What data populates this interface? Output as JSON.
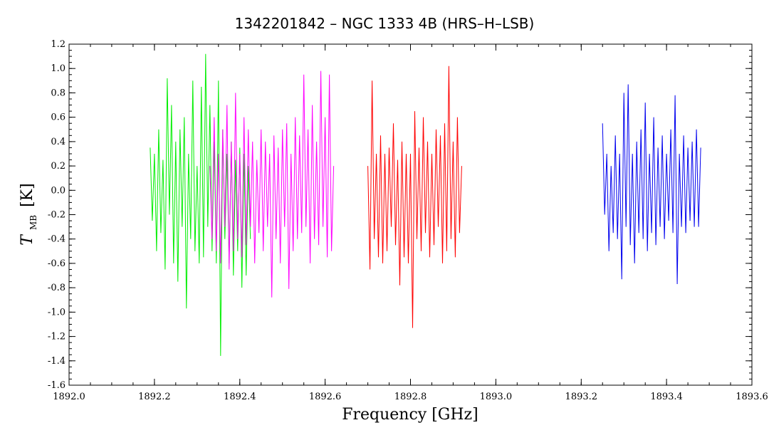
{
  "chart_data": {
    "type": "line",
    "title": "1342201842 – NGC 1333 4B (HRS–H–LSB)",
    "xlabel": "Frequency [GHz]",
    "ylabel_main": "T",
    "ylabel_sub": "MB",
    "ylabel_unit": "[K]",
    "xlim": [
      1892.0,
      1893.6
    ],
    "ylim": [
      -1.6,
      1.2
    ],
    "xticks": [
      1892.0,
      1892.2,
      1892.4,
      1892.6,
      1892.8,
      1893.0,
      1893.2,
      1893.4,
      1893.6
    ],
    "xtick_labels": [
      "1892.0",
      "1892.2",
      "1892.4",
      "1892.6",
      "1892.8",
      "1893.0",
      "1893.2",
      "1893.4",
      "1893.6"
    ],
    "yticks": [
      -1.6,
      -1.4,
      -1.2,
      -1.0,
      -0.8,
      -0.6,
      -0.4,
      -0.2,
      0.0,
      0.2,
      0.4,
      0.6,
      0.8,
      1.0,
      1.2
    ],
    "ytick_labels": [
      "-1.6",
      "-1.4",
      "-1.2",
      "-1.0",
      "-0.8",
      "-0.6",
      "-0.4",
      "-0.2",
      "0.0",
      "0.2",
      "0.4",
      "0.6",
      "0.8",
      "1.0",
      "1.2"
    ],
    "grid": false,
    "series": [
      {
        "color": "#00ee00",
        "x": [
          1892.19,
          1892.195,
          1892.2,
          1892.205,
          1892.21,
          1892.215,
          1892.22,
          1892.225,
          1892.23,
          1892.235,
          1892.24,
          1892.245,
          1892.25,
          1892.255,
          1892.26,
          1892.265,
          1892.27,
          1892.275,
          1892.28,
          1892.285,
          1892.29,
          1892.295,
          1892.3,
          1892.305,
          1892.31,
          1892.315,
          1892.32,
          1892.325,
          1892.33,
          1892.335,
          1892.34,
          1892.345,
          1892.35,
          1892.355,
          1892.36,
          1892.365,
          1892.37,
          1892.375,
          1892.38,
          1892.385,
          1892.39,
          1892.395,
          1892.4,
          1892.405,
          1892.41,
          1892.415,
          1892.42,
          1892.425
        ],
        "y": [
          0.35,
          -0.25,
          0.3,
          -0.5,
          0.5,
          -0.35,
          0.25,
          -0.65,
          0.92,
          -0.2,
          0.7,
          -0.6,
          0.4,
          -0.75,
          0.5,
          -0.3,
          0.6,
          -0.97,
          0.3,
          -0.4,
          0.9,
          -0.5,
          0.2,
          -0.6,
          0.85,
          -0.55,
          1.12,
          -0.3,
          0.7,
          -0.5,
          0.4,
          -0.6,
          0.9,
          -1.36,
          0.5,
          -0.4,
          0.3,
          -0.6,
          0.4,
          -0.7,
          0.25,
          -0.5,
          0.35,
          -0.8,
          0.3,
          -0.7,
          0.2,
          -0.4
        ]
      },
      {
        "color": "#ff00ff",
        "x": [
          1892.33,
          1892.335,
          1892.34,
          1892.345,
          1892.35,
          1892.355,
          1892.36,
          1892.365,
          1892.37,
          1892.375,
          1892.38,
          1892.385,
          1892.39,
          1892.395,
          1892.4,
          1892.405,
          1892.41,
          1892.415,
          1892.42,
          1892.425,
          1892.43,
          1892.435,
          1892.44,
          1892.445,
          1892.45,
          1892.455,
          1892.46,
          1892.465,
          1892.47,
          1892.475,
          1892.48,
          1892.485,
          1892.49,
          1892.495,
          1892.5,
          1892.505,
          1892.51,
          1892.515,
          1892.52,
          1892.525,
          1892.53,
          1892.535,
          1892.54,
          1892.545,
          1892.55,
          1892.555,
          1892.56,
          1892.565,
          1892.57,
          1892.575,
          1892.58,
          1892.585,
          1892.59,
          1892.595,
          1892.6,
          1892.605,
          1892.61,
          1892.615,
          1892.62
        ],
        "y": [
          0.2,
          -0.4,
          0.6,
          -0.5,
          0.3,
          -0.6,
          0.5,
          -0.3,
          0.7,
          -0.65,
          0.4,
          -0.5,
          0.8,
          -0.4,
          0.3,
          -0.55,
          0.6,
          -0.45,
          0.5,
          -0.3,
          0.4,
          -0.6,
          0.25,
          -0.35,
          0.5,
          -0.5,
          0.4,
          -0.3,
          0.3,
          -0.88,
          0.45,
          -0.4,
          0.35,
          -0.6,
          0.5,
          -0.3,
          0.55,
          -0.81,
          0.3,
          -0.5,
          0.6,
          -0.4,
          0.45,
          -0.35,
          0.95,
          -0.3,
          0.5,
          -0.6,
          0.7,
          -0.4,
          0.4,
          -0.45,
          0.98,
          -0.3,
          0.6,
          -0.55,
          0.95,
          -0.5,
          0.2
        ]
      },
      {
        "color": "#ff0000",
        "x": [
          1892.7,
          1892.705,
          1892.71,
          1892.715,
          1892.72,
          1892.725,
          1892.73,
          1892.735,
          1892.74,
          1892.745,
          1892.75,
          1892.755,
          1892.76,
          1892.765,
          1892.77,
          1892.775,
          1892.78,
          1892.785,
          1892.79,
          1892.795,
          1892.8,
          1892.805,
          1892.81,
          1892.815,
          1892.82,
          1892.825,
          1892.83,
          1892.835,
          1892.84,
          1892.845,
          1892.85,
          1892.855,
          1892.86,
          1892.865,
          1892.87,
          1892.875,
          1892.88,
          1892.885,
          1892.89,
          1892.895,
          1892.9,
          1892.905,
          1892.91,
          1892.915,
          1892.92
        ],
        "y": [
          0.2,
          -0.65,
          0.9,
          -0.4,
          0.3,
          -0.55,
          0.45,
          -0.6,
          0.3,
          -0.5,
          0.35,
          -0.3,
          0.55,
          -0.45,
          0.25,
          -0.78,
          0.4,
          -0.55,
          0.3,
          -0.6,
          0.3,
          -1.13,
          0.65,
          -0.4,
          0.35,
          -0.5,
          0.6,
          -0.35,
          0.4,
          -0.55,
          0.3,
          -0.45,
          0.5,
          -0.3,
          0.45,
          -0.6,
          0.55,
          -0.5,
          1.02,
          -0.4,
          0.4,
          -0.55,
          0.6,
          -0.35,
          0.2
        ]
      },
      {
        "color": "#0000ee",
        "x": [
          1893.25,
          1893.255,
          1893.26,
          1893.265,
          1893.27,
          1893.275,
          1893.28,
          1893.285,
          1893.29,
          1893.295,
          1893.3,
          1893.305,
          1893.31,
          1893.315,
          1893.32,
          1893.325,
          1893.33,
          1893.335,
          1893.34,
          1893.345,
          1893.35,
          1893.355,
          1893.36,
          1893.365,
          1893.37,
          1893.375,
          1893.38,
          1893.385,
          1893.39,
          1893.395,
          1893.4,
          1893.405,
          1893.41,
          1893.415,
          1893.42,
          1893.425,
          1893.43,
          1893.435,
          1893.44,
          1893.445,
          1893.45,
          1893.455,
          1893.46,
          1893.465,
          1893.47,
          1893.475,
          1893.48
        ],
        "y": [
          0.55,
          -0.2,
          0.3,
          -0.5,
          0.2,
          -0.35,
          0.45,
          -0.4,
          0.3,
          -0.73,
          0.8,
          -0.3,
          0.87,
          -0.45,
          0.3,
          -0.6,
          0.4,
          -0.35,
          0.5,
          -0.4,
          0.72,
          -0.5,
          0.3,
          -0.35,
          0.6,
          -0.45,
          0.35,
          -0.3,
          0.45,
          -0.4,
          0.3,
          -0.25,
          0.5,
          -0.35,
          0.78,
          -0.77,
          0.3,
          -0.3,
          0.45,
          -0.35,
          0.35,
          -0.25,
          0.4,
          -0.3,
          0.5,
          -0.3,
          0.35
        ]
      }
    ]
  }
}
